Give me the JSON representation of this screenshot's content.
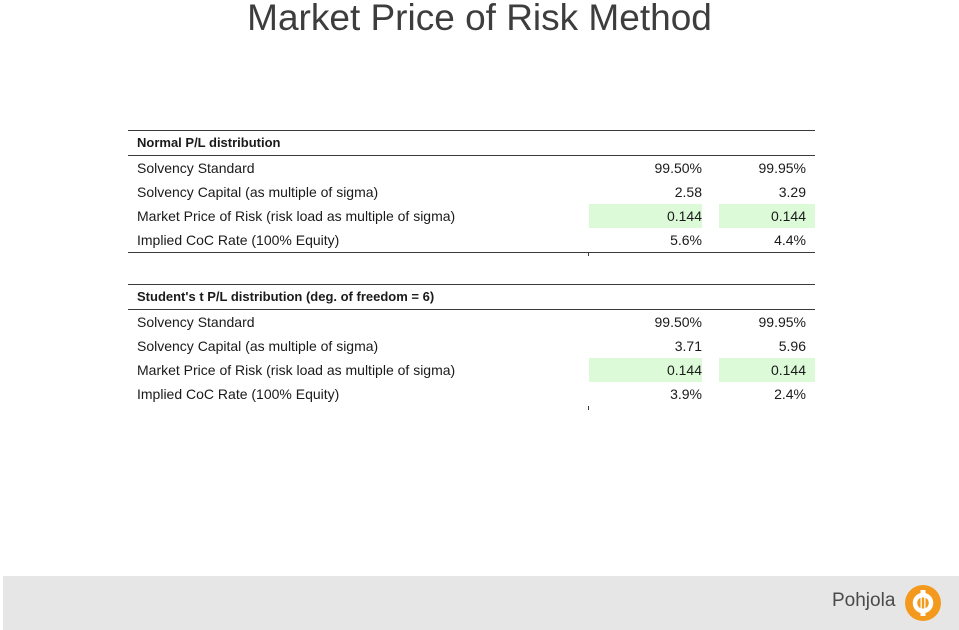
{
  "title": "Market Price of Risk Method",
  "tables": [
    {
      "header": "Normal P/L distribution",
      "rows": [
        {
          "label": "Solvency Standard",
          "v1": "99.50%",
          "v2": "99.95%",
          "highlight": false
        },
        {
          "label": "Solvency Capital (as multiple of sigma)",
          "v1": "2.58",
          "v2": "3.29",
          "highlight": false
        },
        {
          "label": "Market Price of Risk (risk load as multiple of sigma)",
          "v1": "0.144",
          "v2": "0.144",
          "highlight": true
        },
        {
          "label": "Implied CoC Rate (100% Equity)",
          "v1": "5.6%",
          "v2": "4.4%",
          "highlight": false
        }
      ]
    },
    {
      "header": "Student's t P/L distribution (deg. of freedom = 6)",
      "rows": [
        {
          "label": "Solvency Standard",
          "v1": "99.50%",
          "v2": "99.95%",
          "highlight": false
        },
        {
          "label": "Solvency Capital (as multiple of sigma)",
          "v1": "3.71",
          "v2": "5.96",
          "highlight": false
        },
        {
          "label": "Market Price of Risk (risk load as multiple of sigma)",
          "v1": "0.144",
          "v2": "0.144",
          "highlight": true
        },
        {
          "label": "Implied CoC Rate (100% Equity)",
          "v1": "3.9%",
          "v2": "2.4%",
          "highlight": false
        }
      ]
    }
  ],
  "footer": {
    "logo_text": "Pohjola",
    "brand_color": "#f39a1e"
  }
}
